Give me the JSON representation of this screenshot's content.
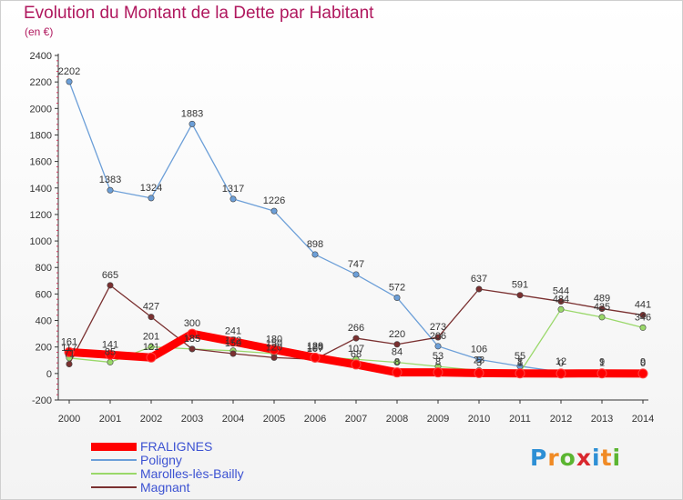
{
  "chart_data": {
    "type": "line",
    "title": "Evolution du Montant de la Dette par Habitant",
    "subtitle": "(en €)",
    "categories": [
      "2000",
      "2001",
      "2002",
      "2003",
      "2004",
      "2005",
      "2006",
      "2007",
      "2008",
      "2009",
      "2010",
      "2011",
      "2012",
      "2013",
      "2014"
    ],
    "ylim": [
      -200,
      2400
    ],
    "yticks": [
      -200,
      0,
      200,
      400,
      600,
      800,
      1000,
      1200,
      1400,
      1600,
      1800,
      2000,
      2200,
      2400
    ],
    "grid": false,
    "legend_position": "bottom-left",
    "series": [
      {
        "name": "FRALIGNES",
        "color": "#ff0000",
        "values": [
          161,
          141,
          121,
          300,
          241,
          180,
          120,
          68,
          8,
          8,
          3,
          1,
          0,
          1,
          0
        ]
      },
      {
        "name": "Poligny",
        "color": "#6c9fd8",
        "values": [
          2202,
          1383,
          1324,
          1883,
          1317,
          1226,
          898,
          747,
          572,
          206,
          106,
          55,
          12,
          9,
          9
        ]
      },
      {
        "name": "Marolles-lès-Bailly",
        "color": "#9ad86a",
        "values": [
          117,
          85,
          201,
          185,
          172,
          150,
          129,
          107,
          84,
          53,
          23,
          8,
          484,
          425,
          346
        ]
      },
      {
        "name": "Magnant",
        "color": "#7a3030",
        "values": [
          71,
          665,
          427,
          185,
          150,
          120,
          107,
          266,
          220,
          273,
          637,
          591,
          544,
          489,
          441
        ]
      }
    ]
  },
  "logo": {
    "text": "Proxiti",
    "letters": [
      "P",
      "r",
      "o",
      "x",
      "i",
      "t",
      "i"
    ]
  }
}
